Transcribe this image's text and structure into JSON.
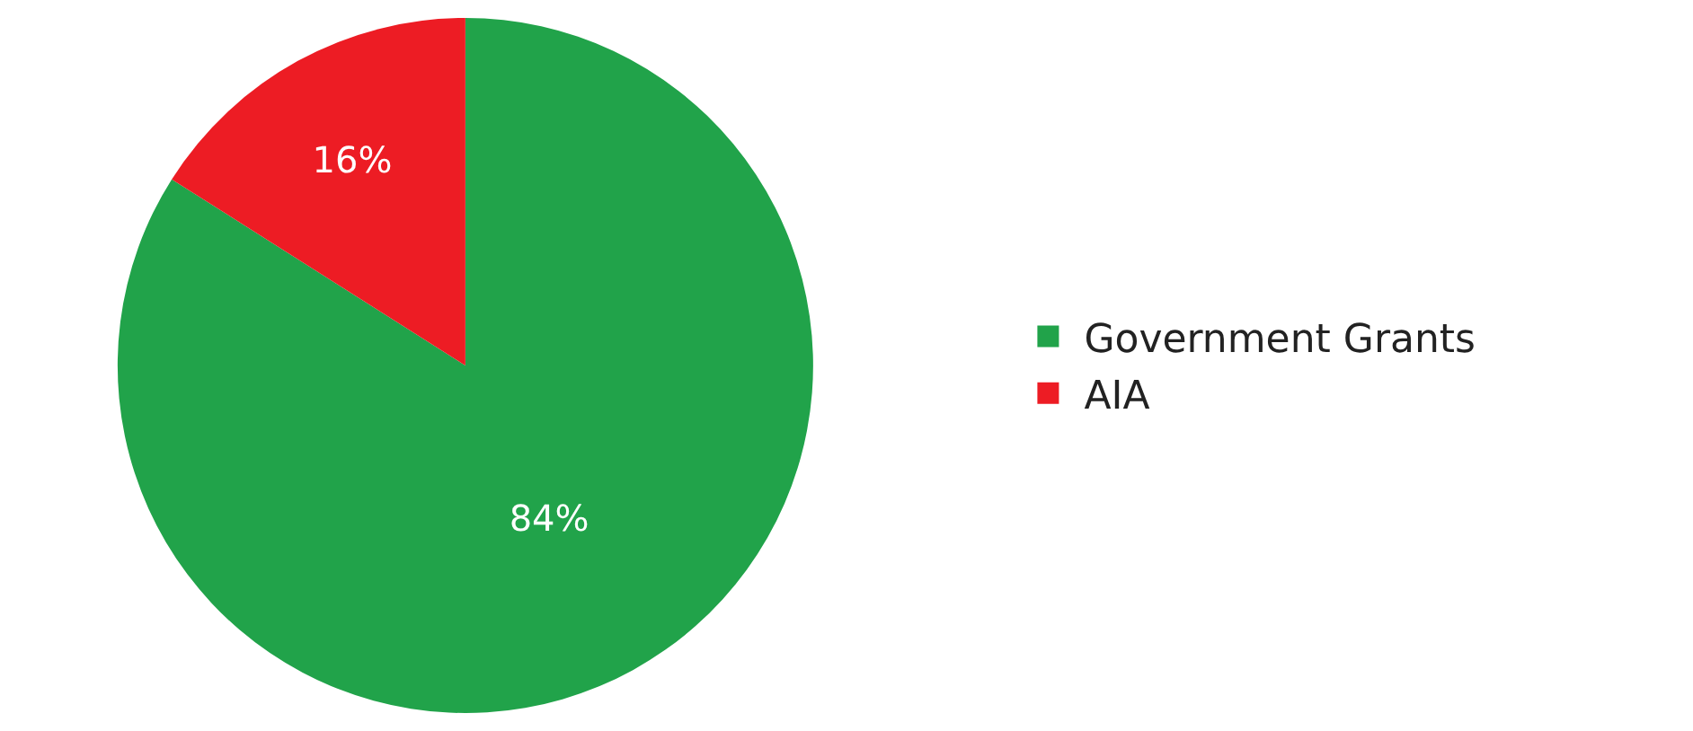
{
  "chart_data": {
    "type": "pie",
    "categories": [
      "Government Grants",
      "AIA"
    ],
    "values": [
      84,
      16
    ],
    "value_labels": [
      "84%",
      "16%"
    ],
    "colors": [
      "#21a34a",
      "#ed1c24"
    ],
    "legend": "right"
  }
}
